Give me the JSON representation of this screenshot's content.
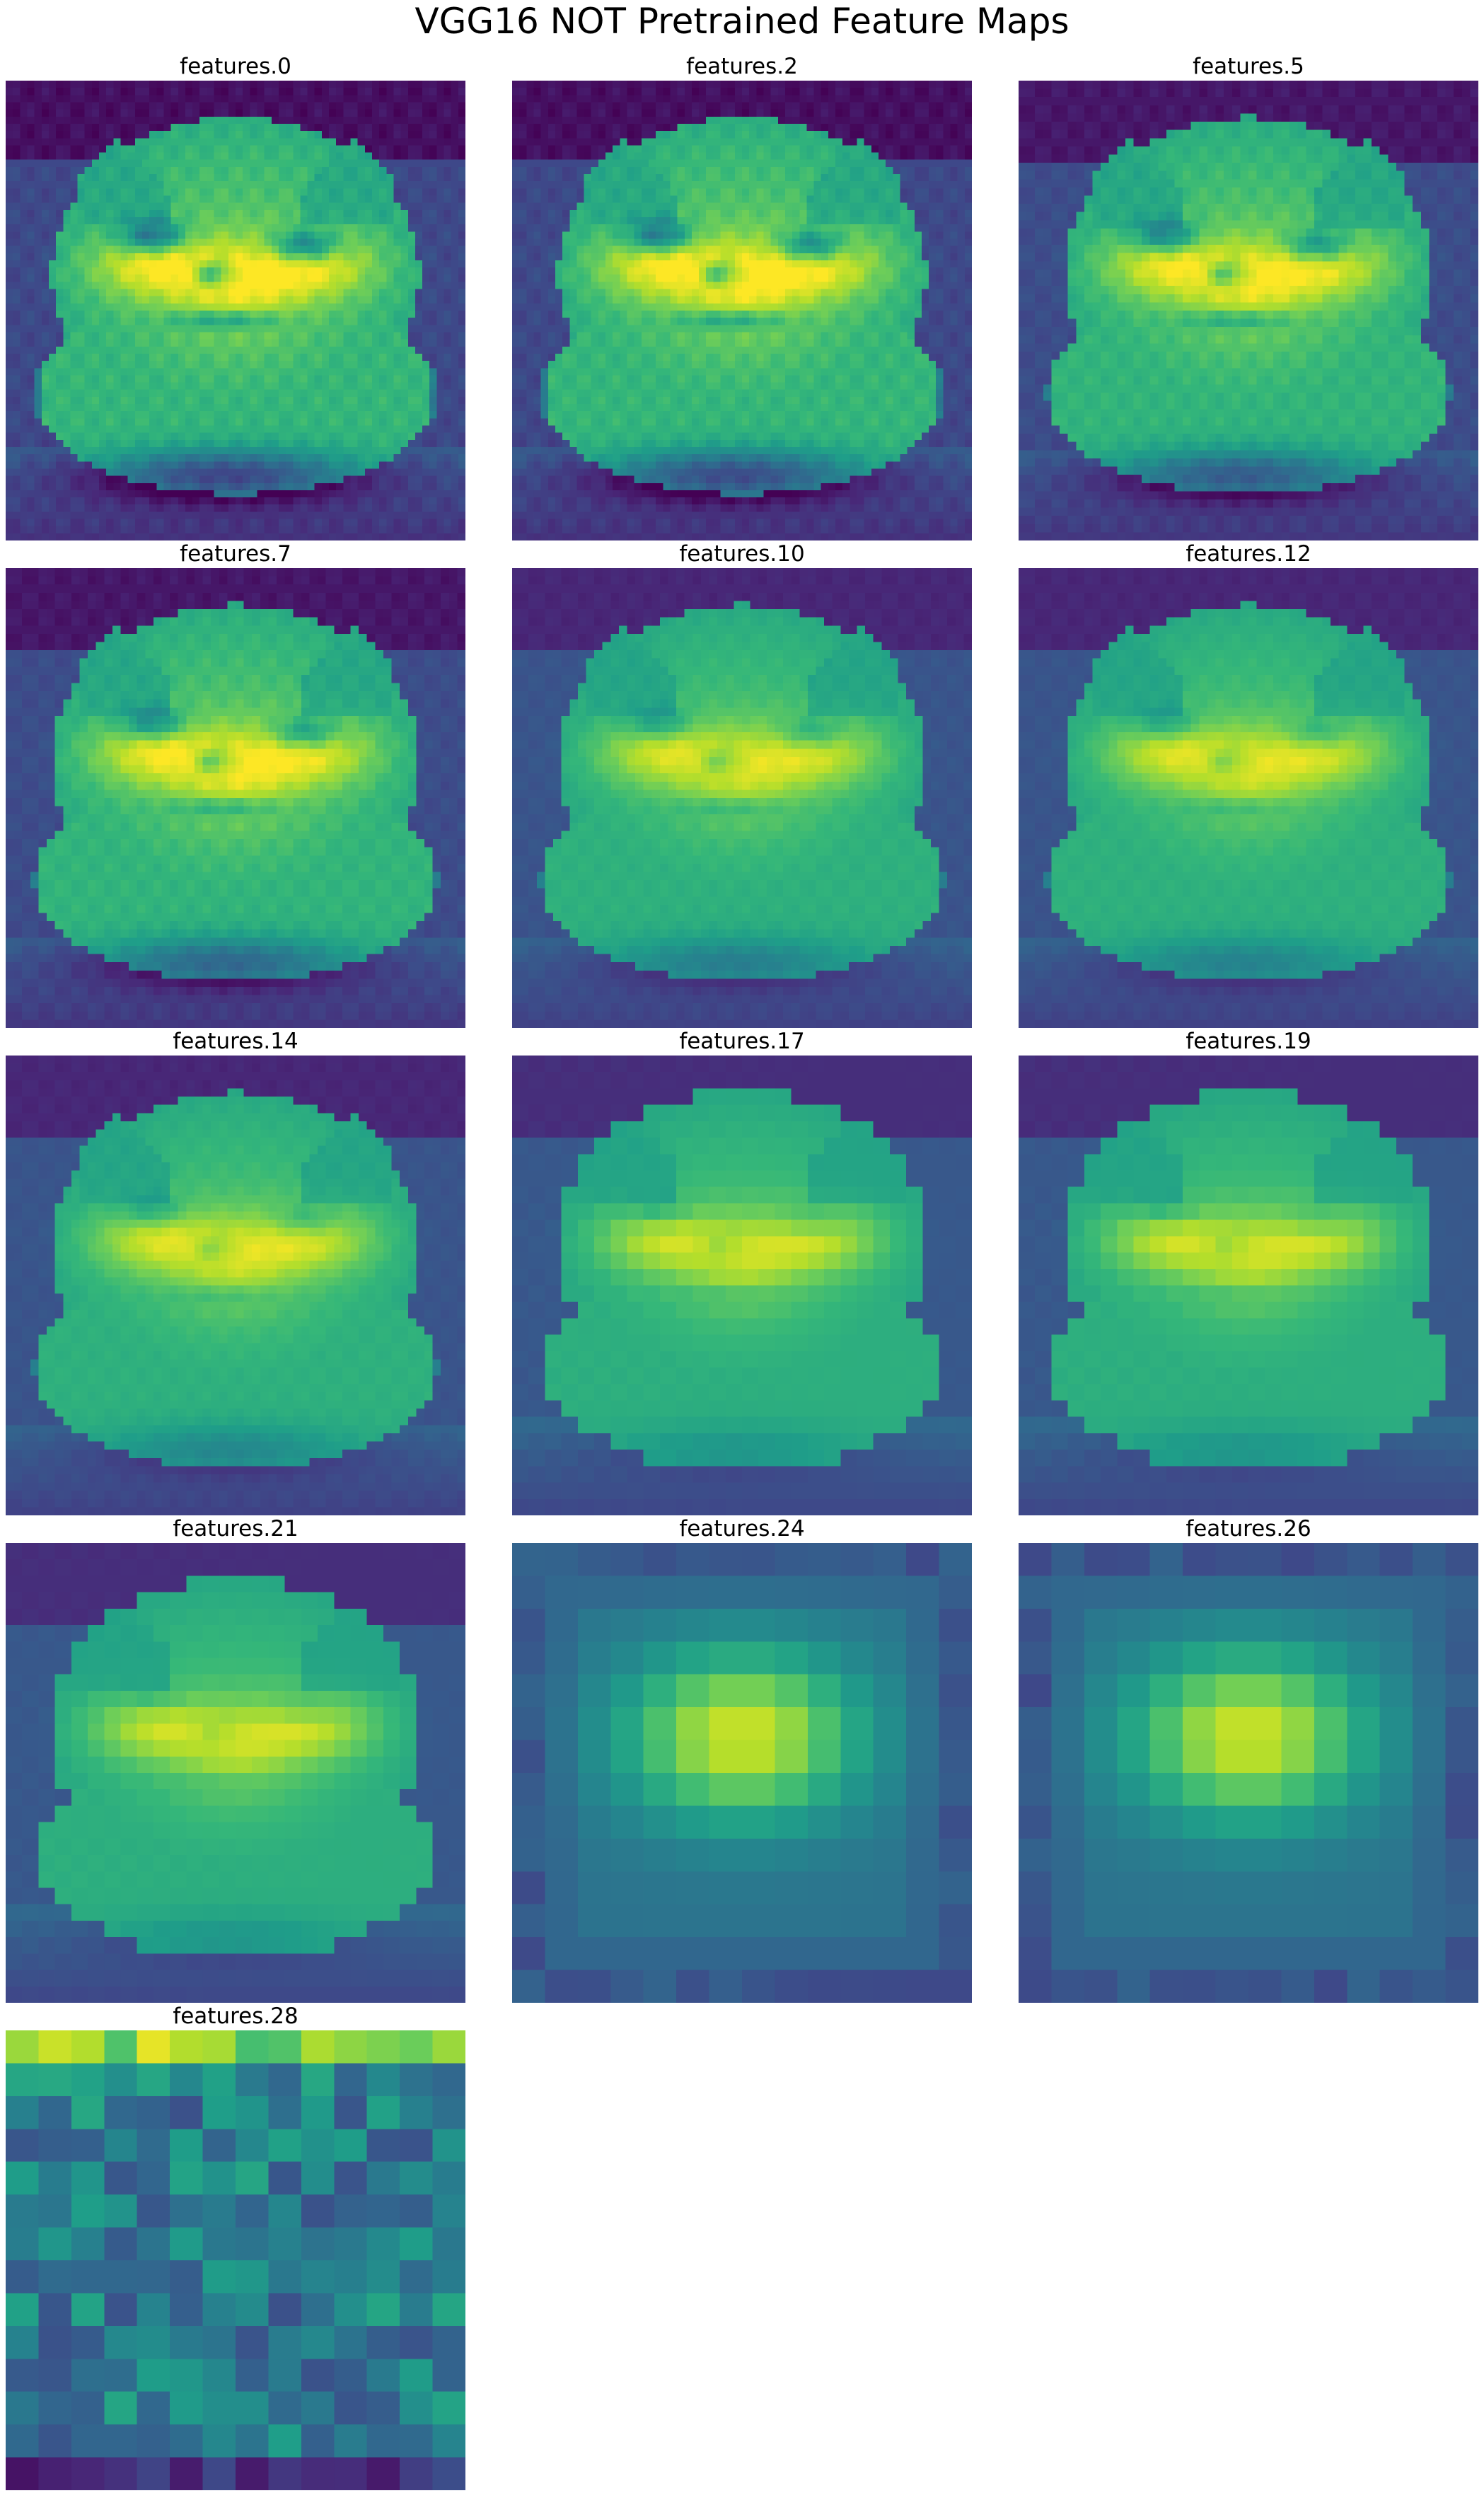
{
  "title": "VGG16 NOT Pretrained Feature Maps",
  "colormap": {
    "name": "viridis",
    "stops": [
      "#440154",
      "#482878",
      "#3e4989",
      "#31688e",
      "#26828e",
      "#1f9e89",
      "#35b779",
      "#6ece58",
      "#b5de2b",
      "#fde725"
    ]
  },
  "chart_data": [
    {
      "type": "heatmap",
      "title": "features.0",
      "grid": 64,
      "kind": "cat",
      "sharpness": 1.0,
      "contrast": 1.0
    },
    {
      "type": "heatmap",
      "title": "features.2",
      "grid": 64,
      "kind": "cat",
      "sharpness": 0.95,
      "contrast": 1.0
    },
    {
      "type": "heatmap",
      "title": "features.5",
      "grid": 56,
      "kind": "cat",
      "sharpness": 0.85,
      "contrast": 0.95
    },
    {
      "type": "heatmap",
      "title": "features.7",
      "grid": 56,
      "kind": "cat",
      "sharpness": 0.75,
      "contrast": 0.95
    },
    {
      "type": "heatmap",
      "title": "features.10",
      "grid": 56,
      "kind": "cat",
      "sharpness": 0.55,
      "contrast": 0.85
    },
    {
      "type": "heatmap",
      "title": "features.12",
      "grid": 56,
      "kind": "cat",
      "sharpness": 0.5,
      "contrast": 0.85
    },
    {
      "type": "heatmap",
      "title": "features.14",
      "grid": 56,
      "kind": "cat",
      "sharpness": 0.45,
      "contrast": 0.85
    },
    {
      "type": "heatmap",
      "title": "features.17",
      "grid": 28,
      "kind": "cat",
      "sharpness": 0.3,
      "contrast": 0.8
    },
    {
      "type": "heatmap",
      "title": "features.19",
      "grid": 28,
      "kind": "cat",
      "sharpness": 0.3,
      "contrast": 0.8
    },
    {
      "type": "heatmap",
      "title": "features.21",
      "grid": 28,
      "kind": "cat",
      "sharpness": 0.25,
      "contrast": 0.8
    },
    {
      "type": "heatmap",
      "title": "features.24",
      "grid": 14,
      "kind": "blob",
      "sharpness": 0.2,
      "contrast": 0.9
    },
    {
      "type": "heatmap",
      "title": "features.26",
      "grid": 14,
      "kind": "blob",
      "sharpness": 0.2,
      "contrast": 0.9
    },
    {
      "type": "heatmap",
      "title": "features.28",
      "grid": 14,
      "kind": "noise",
      "sharpness": 0.0,
      "contrast": 0.9
    }
  ]
}
